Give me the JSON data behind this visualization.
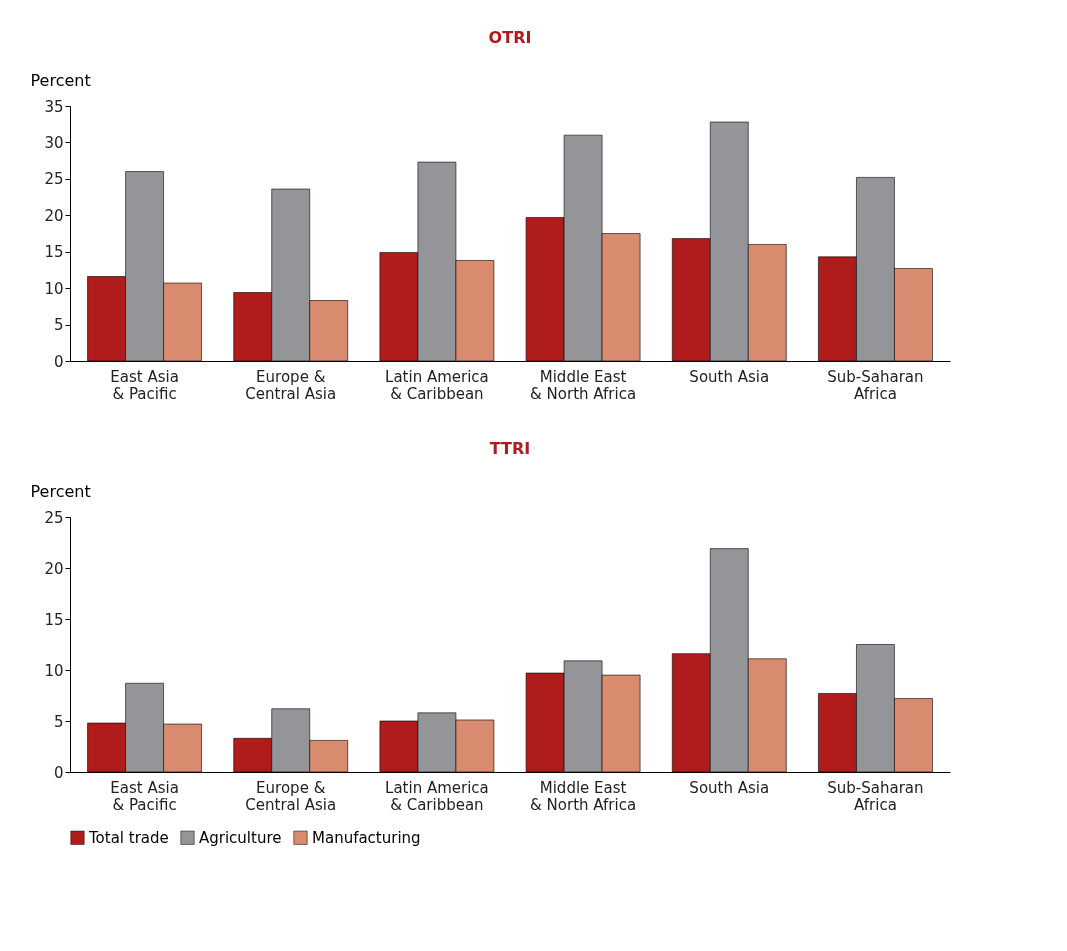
{
  "chart_data": [
    {
      "type": "bar",
      "title": "OTRI",
      "ylabel": "Percent",
      "categories": [
        "East Asia\n& Pacific",
        "Europe &\nCentral Asia",
        "Latin America\n& Caribbean",
        "Middle East\n& North Africa",
        "South Asia",
        "Sub-Saharan\nAfrica"
      ],
      "ylim": [
        0,
        35
      ],
      "yticks": [
        0,
        5,
        10,
        15,
        20,
        25,
        30,
        35
      ],
      "grid": false,
      "legend": "bottom",
      "series": [
        {
          "name": "Total trade",
          "color": "#b01c1c",
          "values": [
            11.6,
            9.4,
            14.9,
            19.7,
            16.8,
            14.3
          ]
        },
        {
          "name": "Agriculture",
          "color": "#939598",
          "values": [
            26.0,
            23.6,
            27.3,
            31.0,
            32.8,
            25.2
          ]
        },
        {
          "name": "Manufacturing",
          "color": "#d98b70",
          "values": [
            10.7,
            8.3,
            13.8,
            17.5,
            16.0,
            12.7
          ]
        }
      ]
    },
    {
      "type": "bar",
      "title": "TTRI",
      "ylabel": "Percent",
      "categories": [
        "East Asia\n& Pacific",
        "Europe &\nCentral Asia",
        "Latin America\n& Caribbean",
        "Middle East\n& North Africa",
        "South Asia",
        "Sub-Saharan\nAfrica"
      ],
      "ylim": [
        0,
        25
      ],
      "yticks": [
        0,
        5,
        10,
        15,
        20,
        25
      ],
      "grid": false,
      "legend": "bottom",
      "series": [
        {
          "name": "Total trade",
          "color": "#b01c1c",
          "values": [
            4.8,
            3.3,
            5.0,
            9.7,
            11.6,
            7.7
          ]
        },
        {
          "name": "Agriculture",
          "color": "#939598",
          "values": [
            8.7,
            6.2,
            5.8,
            10.9,
            21.9,
            12.5
          ]
        },
        {
          "name": "Manufacturing",
          "color": "#d98b70",
          "values": [
            4.7,
            3.1,
            5.1,
            9.5,
            11.1,
            7.2
          ]
        }
      ]
    }
  ]
}
